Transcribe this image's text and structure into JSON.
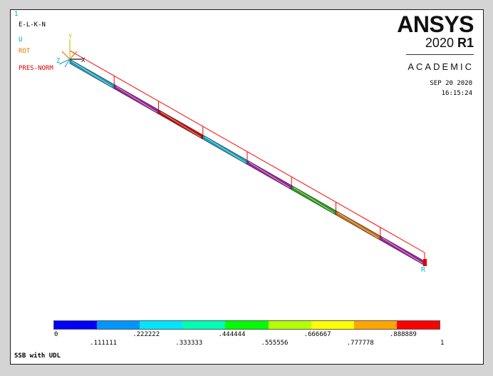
{
  "window_number": "1",
  "legend": {
    "element_labels": "E-L-K-N",
    "displacement_label": "U",
    "rotation_label": "ROT",
    "pressure_label": "PRES-NORM"
  },
  "logo": {
    "brand": "ANSYS",
    "version_year": "2020",
    "version_release": "R1",
    "edition": "ACADEMIC"
  },
  "date": "SEP 20 2020",
  "time": "16:15:24",
  "axis_triad": {
    "y": "Y",
    "z": "Z",
    "x": "X"
  },
  "node_end_label": "R",
  "colors": {
    "pressure_outline": "#ff0000",
    "cyan_label": "#00a6c4",
    "orange_label": "#e07a00",
    "element_colors": [
      "#1a9fbf",
      "#a0229e",
      "#c51010",
      "#1a9fbf",
      "#a0229e",
      "#2e9e18",
      "#c86f12",
      "#a0229e"
    ]
  },
  "contour": {
    "colors": [
      "#0000ff",
      "#0096ff",
      "#00e6ff",
      "#00ffb4",
      "#00ff00",
      "#b4ff00",
      "#ffff00",
      "#ffa500",
      "#ff0000"
    ],
    "labels_top": [
      "0",
      ".222222",
      ".444444",
      ".666667",
      ".888889"
    ],
    "labels_bottom": [
      ".111111",
      ".333333",
      ".555556",
      ".777778",
      "1"
    ]
  },
  "title": "SSB with UDL"
}
